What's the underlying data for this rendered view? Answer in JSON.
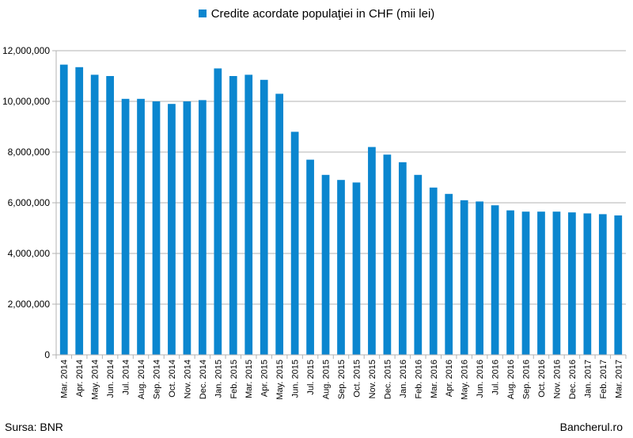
{
  "chart_data": {
    "type": "bar",
    "title": "",
    "xlabel": "",
    "ylabel": "",
    "ylim": [
      0,
      12000000
    ],
    "yticks": [
      0,
      2000000,
      4000000,
      6000000,
      8000000,
      10000000,
      12000000
    ],
    "ytick_labels": [
      "0",
      "2,000,000",
      "4,000,000",
      "6,000,000",
      "8,000,000",
      "10,000,000",
      "12,000,000"
    ],
    "grid": true,
    "legend_position": "top-center",
    "bar_color": "#0b86cf",
    "categories": [
      "Mar. 2014",
      "Apr. 2014",
      "May. 2014",
      "Jun. 2014",
      "Jul. 2014",
      "Aug. 2014",
      "Sep. 2014",
      "Oct. 2014",
      "Nov. 2014",
      "Dec. 2014",
      "Jan. 2015",
      "Feb. 2015",
      "Mar. 2015",
      "Apr. 2015",
      "May. 2015",
      "Jun. 2015",
      "Jul. 2015",
      "Aug. 2015",
      "Sep. 2015",
      "Oct. 2015",
      "Nov. 2015",
      "Dec. 2015",
      "Jan. 2016",
      "Feb. 2016",
      "Mar. 2016",
      "Apr. 2016",
      "May. 2016",
      "Jun. 2016",
      "Jul. 2016",
      "Aug. 2016",
      "Sep. 2016",
      "Oct. 2016",
      "Nov. 2016",
      "Dec. 2016",
      "Jan. 2017",
      "Feb. 2017",
      "Mar. 2017"
    ],
    "series": [
      {
        "name": "Credite acordate populaţiei in CHF (mii lei)",
        "values": [
          11450000,
          11350000,
          11050000,
          11000000,
          10100000,
          10100000,
          10000000,
          9900000,
          10000000,
          10050000,
          11300000,
          11000000,
          11050000,
          10850000,
          10300000,
          8800000,
          7700000,
          7100000,
          6900000,
          6800000,
          8200000,
          7900000,
          7600000,
          7100000,
          6600000,
          6350000,
          6100000,
          6050000,
          5900000,
          5700000,
          5650000,
          5650000,
          5650000,
          5620000,
          5580000,
          5550000,
          5500000
        ]
      }
    ]
  },
  "footer": {
    "source": "Sursa: BNR",
    "brand": "Bancherul.ro"
  }
}
